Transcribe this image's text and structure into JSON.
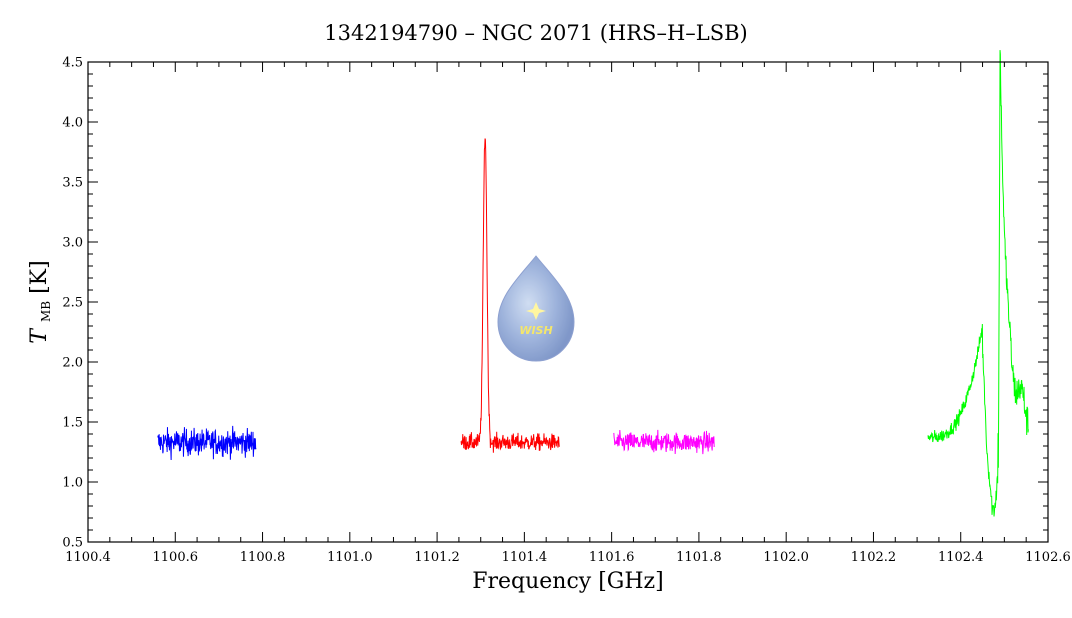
{
  "chart_data": {
    "type": "line",
    "title": "1342194790 – NGC 2071 (HRS–H–LSB)",
    "xlabel": "Frequency [GHz]",
    "ylabel_main": "T",
    "ylabel_sub": "MB",
    "ylabel_unit": "[K]",
    "xlim": [
      1100.4,
      1102.6
    ],
    "ylim": [
      0.5,
      4.5
    ],
    "xticks": [
      "1100.4",
      "1100.6",
      "1100.8",
      "1101.0",
      "1101.2",
      "1101.4",
      "1101.6",
      "1101.8",
      "1102.0",
      "1102.2",
      "1102.4",
      "1102.6"
    ],
    "yticks": [
      "0.5",
      "1.0",
      "1.5",
      "2.0",
      "2.5",
      "3.0",
      "3.5",
      "4.0",
      "4.5"
    ],
    "grid": false,
    "logo_text": "WISH",
    "series": [
      {
        "color": "#0000ff",
        "x_range": [
          1100.56,
          1100.785
        ],
        "baseline": 1.33,
        "noise": 0.08,
        "profile": []
      },
      {
        "color": "#ff0000",
        "x_range": [
          1101.255,
          1101.48
        ],
        "baseline": 1.33,
        "noise": 0.05,
        "profile": [
          {
            "x": 1101.31,
            "peak": 3.9,
            "width": 0.006
          },
          {
            "x": 1101.31,
            "peak": 1.3,
            "width": 0.02
          }
        ]
      },
      {
        "color": "#ff00ff",
        "x_range": [
          1101.605,
          1101.835
        ],
        "baseline": 1.33,
        "noise": 0.06,
        "profile": []
      },
      {
        "color": "#00ff00",
        "x_range": [
          1102.325,
          1102.555
        ],
        "baseline": 1.37,
        "noise": 0.04,
        "profile": [
          {
            "x": 1102.45,
            "peak": 2.3,
            "kind": "rise_from_left"
          },
          {
            "x": 1102.475,
            "peak": 0.7,
            "kind": "dip"
          },
          {
            "x": 1102.49,
            "peak": 4.25,
            "kind": "spike"
          },
          {
            "x": 1102.555,
            "peak": 1.8,
            "kind": "decay_to_right"
          }
        ]
      }
    ]
  }
}
